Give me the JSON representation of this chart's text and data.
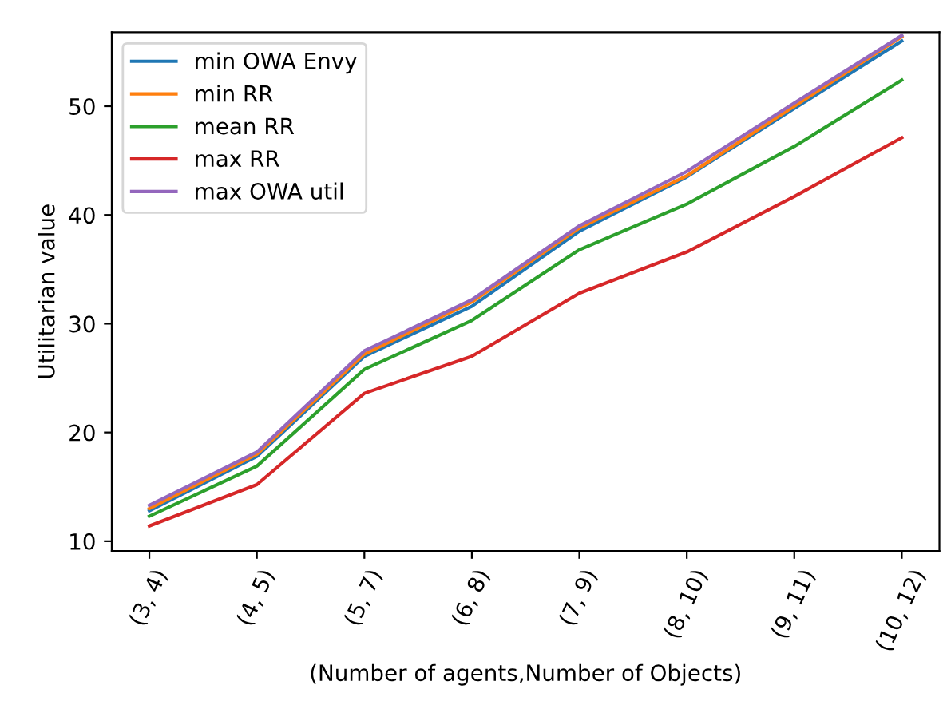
{
  "chart_data": {
    "type": "line",
    "xlabel": "(Number of agents,Number of Objects)",
    "ylabel": "Utilitarian value",
    "categories": [
      "(3, 4)",
      "(4, 5)",
      "(5, 7)",
      "(6, 8)",
      "(7, 9)",
      "(8, 10)",
      "(9, 11)",
      "(10, 12)"
    ],
    "series": [
      {
        "name": "min OWA Envy",
        "color": "#1f77b4",
        "values": [
          12.8,
          17.8,
          27.0,
          31.6,
          38.5,
          43.5,
          49.8,
          56.0
        ]
      },
      {
        "name": "min RR",
        "color": "#ff7f0e",
        "values": [
          13.0,
          18.0,
          27.2,
          32.0,
          38.8,
          43.6,
          50.0,
          56.4
        ]
      },
      {
        "name": "mean RR",
        "color": "#2ca02c",
        "values": [
          12.3,
          16.9,
          25.8,
          30.3,
          36.8,
          41.0,
          46.3,
          52.4
        ]
      },
      {
        "name": "max RR",
        "color": "#d62728",
        "values": [
          11.4,
          15.2,
          23.6,
          27.0,
          32.8,
          36.6,
          41.7,
          47.1
        ]
      },
      {
        "name": "max OWA util",
        "color": "#9467bd",
        "values": [
          13.3,
          18.2,
          27.5,
          32.2,
          39.0,
          44.0,
          50.3,
          56.5
        ]
      }
    ],
    "ylim": [
      9.1,
      56.8
    ],
    "yticks": [
      10,
      20,
      30,
      40,
      50
    ],
    "legend": "top left",
    "grid": false
  }
}
